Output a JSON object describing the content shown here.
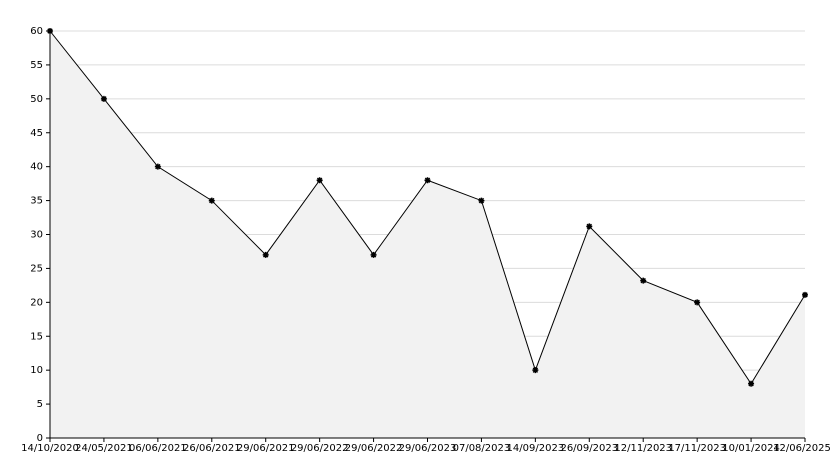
{
  "chart_data": {
    "type": "line",
    "x": [
      "14/10/2020",
      "24/05/2021",
      "06/06/2021",
      "26/06/2021",
      "29/06/2021",
      "29/06/2022",
      "29/06/2022",
      "29/06/2023",
      "07/08/2023",
      "14/09/2023",
      "26/09/2023",
      "12/11/2023",
      "17/11/2023",
      "10/01/2024",
      "12/06/2025"
    ],
    "series": [
      {
        "color": "#000000",
        "fill": "#f2f2f2",
        "values": [
          60,
          50,
          40,
          35,
          27,
          38,
          27,
          38,
          35,
          10,
          31.2,
          23.2,
          20,
          8,
          21.1
        ]
      }
    ],
    "ylim": [
      0,
      60
    ],
    "yticks": [
      0,
      5,
      10,
      15,
      20,
      25,
      30,
      35,
      40,
      45,
      50,
      55,
      60
    ],
    "grid": true
  }
}
